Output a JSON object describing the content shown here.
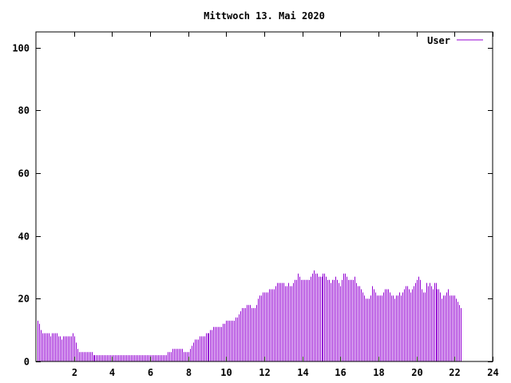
{
  "chart_data": {
    "type": "bar",
    "title": "Mittwoch 13. Mai 2020",
    "xlabel": "",
    "ylabel": "",
    "xlim": [
      0,
      24
    ],
    "ylim": [
      0,
      105
    ],
    "x_ticks": [
      2,
      4,
      6,
      8,
      10,
      12,
      14,
      16,
      18,
      20,
      22,
      24
    ],
    "y_ticks": [
      0,
      20,
      40,
      60,
      80,
      100
    ],
    "grid": false,
    "legend_position": "top-right",
    "series_color": "#9400d3",
    "bar_interval_minutes": 5,
    "series": [
      {
        "name": "User",
        "values": [
          13,
          12,
          10,
          9,
          9,
          9,
          9,
          9,
          8,
          9,
          9,
          9,
          9,
          8,
          8,
          7,
          8,
          8,
          8,
          8,
          8,
          8,
          9,
          8,
          6,
          4,
          3,
          3,
          3,
          3,
          3,
          3,
          3,
          3,
          3,
          2,
          2,
          2,
          2,
          2,
          2,
          2,
          2,
          2,
          2,
          2,
          2,
          2,
          2,
          2,
          2,
          2,
          2,
          2,
          2,
          2,
          2,
          2,
          2,
          2,
          2,
          2,
          2,
          2,
          2,
          2,
          2,
          2,
          2,
          2,
          2,
          2,
          2,
          2,
          2,
          2,
          2,
          2,
          2,
          2,
          2,
          2,
          3,
          3,
          3,
          4,
          4,
          4,
          4,
          4,
          4,
          4,
          3,
          3,
          3,
          3,
          4,
          5,
          6,
          7,
          7,
          7,
          8,
          8,
          8,
          8,
          9,
          9,
          9,
          10,
          10,
          11,
          11,
          11,
          11,
          11,
          11,
          12,
          12,
          13,
          13,
          13,
          13,
          13,
          13,
          14,
          14,
          15,
          16,
          17,
          17,
          17,
          18,
          18,
          18,
          17,
          17,
          17,
          18,
          20,
          21,
          21,
          22,
          22,
          22,
          22,
          23,
          23,
          23,
          23,
          24,
          25,
          25,
          25,
          25,
          25,
          24,
          24,
          25,
          24,
          24,
          25,
          26,
          26,
          28,
          27,
          26,
          26,
          26,
          26,
          26,
          26,
          27,
          28,
          29,
          28,
          28,
          27,
          27,
          27,
          28,
          28,
          27,
          26,
          26,
          25,
          26,
          26,
          27,
          26,
          25,
          24,
          26,
          28,
          28,
          27,
          26,
          26,
          26,
          26,
          27,
          25,
          24,
          24,
          23,
          22,
          21,
          20,
          20,
          20,
          21,
          24,
          23,
          22,
          21,
          21,
          21,
          21,
          22,
          23,
          23,
          23,
          22,
          21,
          21,
          20,
          21,
          21,
          22,
          21,
          22,
          23,
          24,
          24,
          23,
          22,
          23,
          24,
          25,
          26,
          27,
          26,
          23,
          22,
          22,
          25,
          24,
          25,
          24,
          23,
          25,
          25,
          23,
          23,
          22,
          20,
          21,
          21,
          22,
          23,
          21,
          21,
          21,
          21,
          20,
          19,
          18,
          17
        ]
      }
    ]
  }
}
